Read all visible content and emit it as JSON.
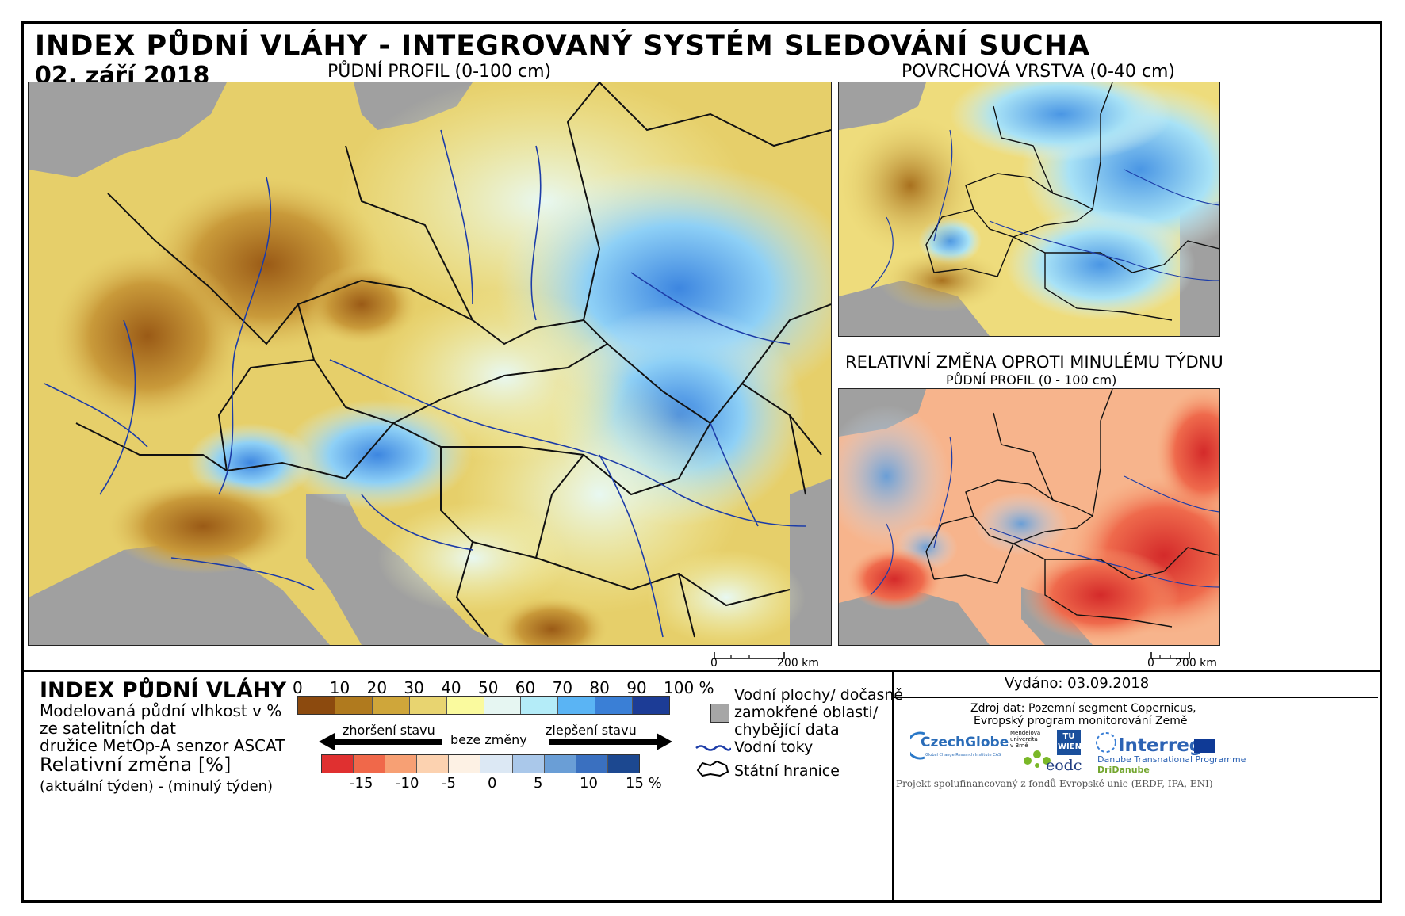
{
  "header": {
    "title": "INDEX PŮDNÍ VLÁHY - INTEGROVANÝ SYSTÉM SLEDOVÁNÍ SUCHA",
    "date": "02. září 2018"
  },
  "maps": {
    "main_label": "PŮDNÍ PROFIL (0-100 cm)",
    "surface_label": "POVRCHOVÁ VRSTVA (0-40 cm)",
    "change_label": "RELATIVNÍ ZMĚNA OPROTI MINULÉMU TÝDNU",
    "change_sublabel": "PŮDNÍ PROFIL (0 - 100 cm)",
    "scale_main": {
      "zero": "0",
      "end": "200 km"
    },
    "scale_small": {
      "zero": "0",
      "end": "200 km"
    }
  },
  "legend": {
    "title": "INDEX PŮDNÍ VLÁHY",
    "desc_line1": "Modelovaná půdní vlhkost v %",
    "desc_line2": "ze satelitních dat",
    "desc_line3": "družice MetOp-A senzor ASCAT",
    "change_title": "Relativní změna [%]",
    "change_desc": "(aktuální týden) - (minulý týden)",
    "index_ticks": [
      "0",
      "10",
      "20",
      "30",
      "40",
      "50",
      "60",
      "70",
      "80",
      "90",
      "100 %"
    ],
    "index_colors": [
      "#8c4a0e",
      "#b07a1e",
      "#cfa63a",
      "#e8d470",
      "#fafa9e",
      "#e6f6f2",
      "#b4ecf8",
      "#5ab4f4",
      "#3a7fd6",
      "#1c3c96"
    ],
    "arrow_worse": "zhoršení stavu",
    "arrow_nochange": "beze změny",
    "arrow_better": "zlepšení stavu",
    "change_ticks": [
      "-15",
      "-10",
      "-5",
      "0",
      "5",
      "10",
      "15 %"
    ],
    "change_colors": [
      "#e03030",
      "#f0684a",
      "#f7a074",
      "#fcd2b0",
      "#fdf1e4",
      "#dce8f4",
      "#aac8ea",
      "#6a9ed6",
      "#3a70c0",
      "#1c4890"
    ],
    "water_bodies": "Vodní plochy/ dočasně zamokřené oblasti/ chybějící data",
    "water_bodies_l1": "Vodní plochy/ dočasně",
    "water_bodies_l2": "zamokřené oblasti/",
    "water_bodies_l3": "chybějící data",
    "rivers": "Vodní toky",
    "borders": "Státní hranice"
  },
  "footer": {
    "issued": "Vydáno: 03.09.2018",
    "source_line1": "Zdroj dat: Pozemní segment Copernicus,",
    "source_line2": "Evropský program monitorování Země",
    "logo_czechglobe": "CzechGlobe",
    "logo_czechglobe_sub": "Global Change Research Institute CAS",
    "logo_mendel": "Mendelova univerzita v Brně",
    "logo_tu": "TU WIEN",
    "logo_eodc": "eodc",
    "logo_interreg": "Interreg",
    "logo_interreg_sub1": "Danube Transnational Programme",
    "logo_interreg_sub2": "DriDanube",
    "funding": "Projekt spolufinancovaný z fondů Evropské unie (ERDF, IPA, ENI)"
  }
}
